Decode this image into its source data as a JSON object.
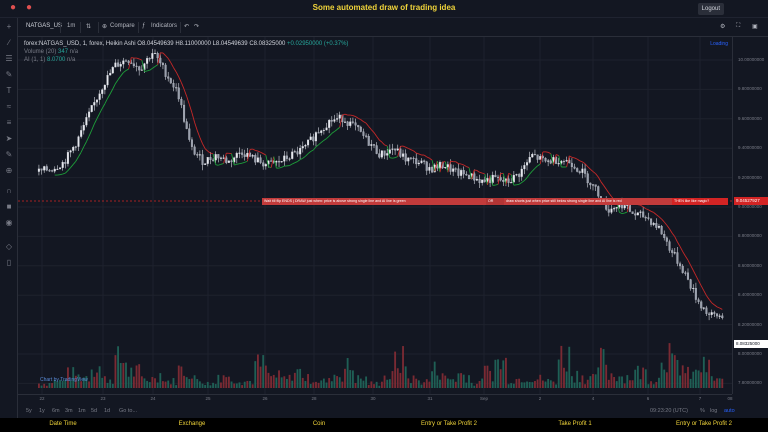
{
  "app": {
    "title": "Some automated draw of trading idea",
    "logout_label": "Logout"
  },
  "toolbar": {
    "symbol": "NATGAS_US",
    "interval": "1m",
    "compare_label": "Compare",
    "indicators_label": "Indicators"
  },
  "legend": {
    "main": "forex:NATGAS_USD, 1, forex, Heikin Ashi",
    "o": "O8.04549639",
    "h": "H8.11000000",
    "l": "L8.04549639",
    "c": "C8.08325000",
    "chg": "+0.02950000 (+0.37%)",
    "volume_label": "Volume (20)",
    "volume_val": "347",
    "volume_na": "n/a",
    "ai_label": "AI (1, 1)",
    "ai_val": "8.0700",
    "ai_na": "n/a"
  },
  "loading_label": "Loading",
  "watermark": "Chart by TradingView",
  "price_axis": {
    "labels": [
      "10.00000000",
      "9.80000000",
      "9.60000000",
      "9.40000000",
      "9.20000000",
      "9.00000000",
      "8.80000000",
      "8.60000000",
      "8.40000000",
      "8.20000000",
      "8.00000000",
      "7.80000000",
      "7.60000000"
    ],
    "line_tag": "9.04527927",
    "last_tag": "8.08325000"
  },
  "time_axis": {
    "labels": [
      "22",
      "23",
      "24",
      "25",
      "26",
      "28",
      "30",
      "31",
      "Sep",
      "2",
      "4",
      "6",
      "7",
      "08"
    ]
  },
  "annotation": {
    "parts": [
      "Wait till flip ENDS  |   DRAW just when:  price is above strong single line and AI line is green",
      "OR",
      "draw shorts just when price still below strong single line and AI line is red",
      "THEN like like magic?"
    ]
  },
  "bottombar": {
    "ranges": [
      "5y",
      "1y",
      "6m",
      "3m",
      "1m",
      "5d",
      "1d",
      "Go to..."
    ],
    "clock": "09:23:20 (UTC)",
    "pct": "%",
    "log": "log",
    "auto": "auto"
  },
  "footer": {
    "columns": [
      "Date Time",
      "Exchange",
      "Coin",
      "Entry or Take Profit 2",
      "Take Profit 1",
      "Entry or Take Profit 2"
    ]
  },
  "colors": {
    "up": "#26a69a",
    "down": "#ef5350",
    "candle": "#d1d4dc",
    "green_line": "#1e9e3a",
    "red_line": "#c62828",
    "title": "#f0d43a"
  },
  "chart_data": {
    "type": "candlestick",
    "ylim": [
      7.6,
      10.0
    ],
    "close_path": [
      9.13,
      9.15,
      9.2,
      9.35,
      9.55,
      9.75,
      9.9,
      9.95,
      9.88,
      10.0,
      9.85,
      9.7,
      9.3,
      9.2,
      9.25,
      9.2,
      9.28,
      9.22,
      9.18,
      9.2,
      9.25,
      9.3,
      9.42,
      9.5,
      9.52,
      9.45,
      9.35,
      9.25,
      9.3,
      9.22,
      9.2,
      9.15,
      9.18,
      9.12,
      9.1,
      9.06,
      9.08,
      9.05,
      9.12,
      9.25,
      9.2,
      9.22,
      9.2,
      9.12,
      9.0,
      8.85,
      8.9,
      8.82,
      8.8,
      8.72,
      8.55,
      8.4,
      8.2,
      8.08,
      8.08
    ],
    "volume_path": [
      0.1,
      0.15,
      0.3,
      0.25,
      0.5,
      0.2,
      0.6,
      0.35,
      0.2,
      0.3,
      0.15,
      0.4,
      0.2,
      0.1,
      0.3,
      0.2,
      0.15,
      0.5,
      0.25,
      0.2,
      0.35,
      0.2,
      0.15,
      0.3,
      0.45,
      0.2,
      0.1,
      0.25,
      0.6,
      0.2,
      0.15,
      0.4,
      0.2,
      0.3,
      0.1,
      0.35,
      0.55,
      0.2,
      0.25,
      0.2,
      0.15,
      0.7,
      0.3,
      0.2,
      0.6,
      0.3,
      0.25,
      0.35,
      0.2,
      0.8,
      0.5,
      0.3,
      0.45,
      0.2,
      0.15
    ]
  }
}
